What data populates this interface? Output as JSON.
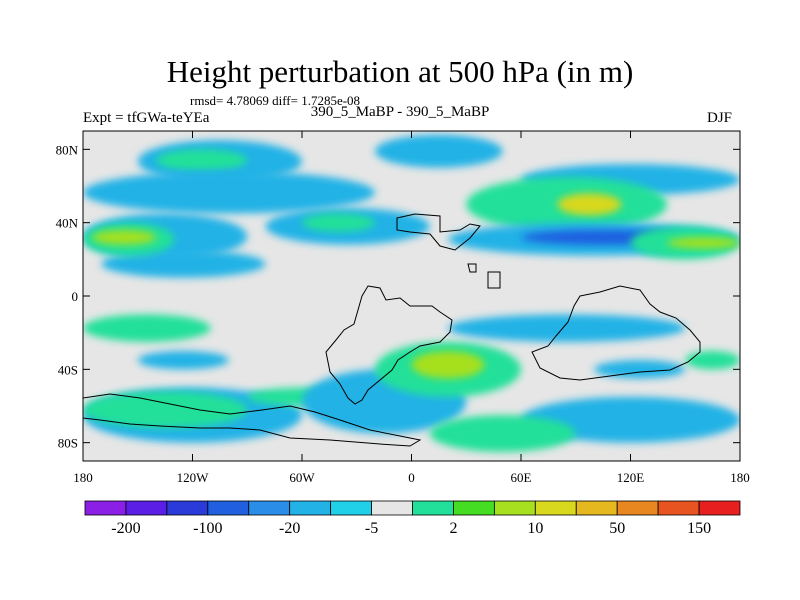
{
  "header": {
    "title": "Height perturbation at 500 hPa (in m)",
    "stats": "rmsd= 4.78069 diff= 1.7285e-08",
    "experiment": "Expt = tfGWa-teYEa",
    "subtitle": "390_5_MaBP - 390_5_MaBP",
    "season": "DJF"
  },
  "axes": {
    "lat_ticks": [
      {
        "label": "80N",
        "lat": 80
      },
      {
        "label": "40N",
        "lat": 40
      },
      {
        "label": "0",
        "lat": 0
      },
      {
        "label": "40S",
        "lat": -40
      },
      {
        "label": "80S",
        "lat": -80
      }
    ],
    "lon_ticks": [
      {
        "label": "180",
        "lon": -180
      },
      {
        "label": "120W",
        "lon": -120
      },
      {
        "label": "60W",
        "lon": -60
      },
      {
        "label": "0",
        "lon": 0
      },
      {
        "label": "60E",
        "lon": 60
      },
      {
        "label": "120E",
        "lon": 120
      },
      {
        "label": "180",
        "lon": 180
      }
    ],
    "lat_range": [
      -90,
      90
    ],
    "lon_range": [
      -180,
      180
    ]
  },
  "colorbar": {
    "colors": [
      "#8b1fe6",
      "#5a1ee6",
      "#2a3bd9",
      "#1f5fe0",
      "#2a8ee8",
      "#22b2e6",
      "#1fd0e8",
      "#e6e6e6",
      "#22e09a",
      "#44dd22",
      "#a6e01f",
      "#d8d81f",
      "#e6b81f",
      "#e8861f",
      "#e8541f",
      "#e81f1f"
    ],
    "labels": [
      {
        "text": "-200",
        "after_box": 1
      },
      {
        "text": "-100",
        "after_box": 3
      },
      {
        "text": "-20",
        "after_box": 5
      },
      {
        "text": "-5",
        "after_box": 7
      },
      {
        "text": "2",
        "after_box": 9
      },
      {
        "text": "10",
        "after_box": 11
      },
      {
        "text": "50",
        "after_box": 13
      },
      {
        "text": "150",
        "after_box": 15
      }
    ]
  },
  "map_data": {
    "background_color": "#e6e6e6",
    "fields": [
      {
        "level": "cyan",
        "color": "#22b2e6",
        "lon": [
          -150,
          -60
        ],
        "lat": [
          62,
          85
        ]
      },
      {
        "level": "teal",
        "color": "#22e09a",
        "lon": [
          -140,
          -90
        ],
        "lat": [
          68,
          80
        ]
      },
      {
        "level": "cyan",
        "color": "#22b2e6",
        "lon": [
          -180,
          -20
        ],
        "lat": [
          45,
          68
        ]
      },
      {
        "level": "cyan",
        "color": "#22b2e6",
        "lon": [
          -20,
          50
        ],
        "lat": [
          70,
          88
        ]
      },
      {
        "level": "cyan",
        "color": "#22b2e6",
        "lon": [
          60,
          180
        ],
        "lat": [
          55,
          72
        ]
      },
      {
        "level": "cyan",
        "color": "#22b2e6",
        "lon": [
          -170,
          -80
        ],
        "lat": [
          10,
          25
        ]
      },
      {
        "level": "cyan",
        "color": "#22b2e6",
        "lon": [
          -180,
          -90
        ],
        "lat": [
          20,
          45
        ]
      },
      {
        "level": "teal",
        "color": "#22e09a",
        "lon": [
          -180,
          -130
        ],
        "lat": [
          22,
          40
        ]
      },
      {
        "level": "lime",
        "color": "#a6e01f",
        "lon": [
          -175,
          -140
        ],
        "lat": [
          28,
          36
        ]
      },
      {
        "level": "cyan",
        "color": "#22b2e6",
        "lon": [
          -80,
          10
        ],
        "lat": [
          28,
          48
        ]
      },
      {
        "level": "teal",
        "color": "#22e09a",
        "lon": [
          -60,
          -20
        ],
        "lat": [
          35,
          45
        ]
      },
      {
        "level": "teal",
        "color": "#22e09a",
        "lon": [
          30,
          140
        ],
        "lat": [
          35,
          65
        ]
      },
      {
        "level": "yellow",
        "color": "#d8d81f",
        "lon": [
          80,
          115
        ],
        "lat": [
          44,
          56
        ]
      },
      {
        "level": "cyan",
        "color": "#22b2e6",
        "lon": [
          20,
          180
        ],
        "lat": [
          22,
          40
        ]
      },
      {
        "level": "blue",
        "color": "#1f5fe0",
        "lon": [
          60,
          150
        ],
        "lat": [
          28,
          36
        ]
      },
      {
        "level": "teal",
        "color": "#22e09a",
        "lon": [
          120,
          180
        ],
        "lat": [
          20,
          38
        ]
      },
      {
        "level": "lime",
        "color": "#a6e01f",
        "lon": [
          140,
          180
        ],
        "lat": [
          26,
          32
        ]
      },
      {
        "level": "teal",
        "color": "#22e09a",
        "lon": [
          -180,
          -110
        ],
        "lat": [
          -10,
          -25
        ]
      },
      {
        "level": "cyan",
        "color": "#22b2e6",
        "lon": [
          -150,
          -100
        ],
        "lat": [
          -40,
          -30
        ]
      },
      {
        "level": "cyan",
        "color": "#22b2e6",
        "lon": [
          -180,
          -60
        ],
        "lat": [
          -80,
          -50
        ]
      },
      {
        "level": "teal",
        "color": "#22e09a",
        "lon": [
          -180,
          -90
        ],
        "lat": [
          -72,
          -52
        ]
      },
      {
        "level": "teal",
        "color": "#22e09a",
        "lon": [
          -90,
          -30
        ],
        "lat": [
          -60,
          -50
        ]
      },
      {
        "level": "cyan",
        "color": "#22b2e6",
        "lon": [
          -60,
          30
        ],
        "lat": [
          -75,
          -40
        ]
      },
      {
        "level": "teal",
        "color": "#22e09a",
        "lon": [
          -20,
          60
        ],
        "lat": [
          -55,
          -25
        ]
      },
      {
        "level": "lime",
        "color": "#a6e01f",
        "lon": [
          0,
          40
        ],
        "lat": [
          -45,
          -30
        ]
      },
      {
        "level": "cyan",
        "color": "#22b2e6",
        "lon": [
          20,
          150
        ],
        "lat": [
          -25,
          -10
        ]
      },
      {
        "level": "cyan",
        "color": "#22b2e6",
        "lon": [
          60,
          180
        ],
        "lat": [
          -80,
          -55
        ]
      },
      {
        "level": "teal",
        "color": "#22e09a",
        "lon": [
          10,
          90
        ],
        "lat": [
          -85,
          -65
        ]
      },
      {
        "level": "cyan",
        "color": "#22b2e6",
        "lon": [
          100,
          150
        ],
        "lat": [
          -45,
          -35
        ]
      },
      {
        "level": "teal",
        "color": "#22e09a",
        "lon": [
          150,
          180
        ],
        "lat": [
          -40,
          -30
        ]
      }
    ]
  }
}
